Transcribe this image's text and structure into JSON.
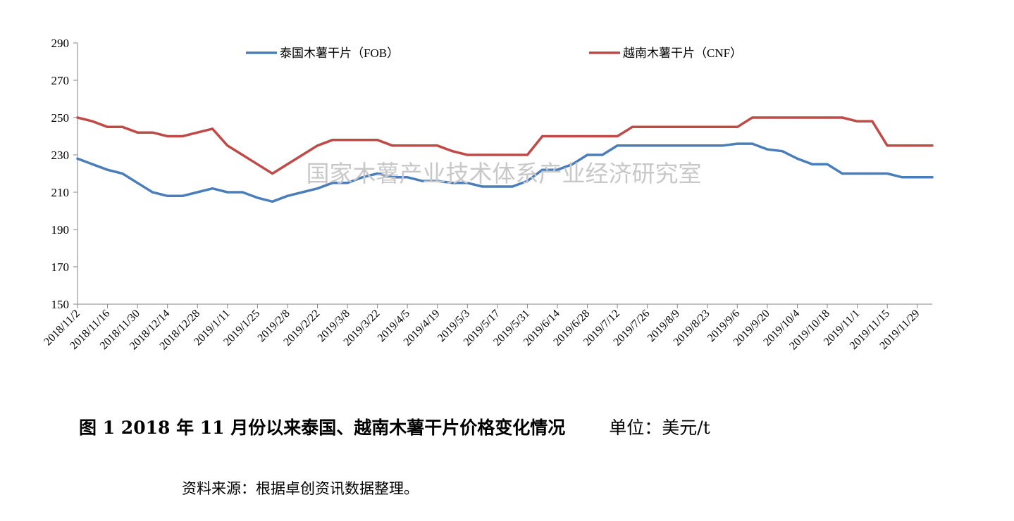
{
  "caption": {
    "title": "图 1   2018 年 11 月份以来泰国、越南木薯干片价格变化情况",
    "unit": "单位：美元/t"
  },
  "source_note": "资料来源：根据卓创资讯数据整理。",
  "watermark": "国家木薯产业技术体系产业经济研究室",
  "chart_data": {
    "type": "line",
    "ylim": [
      150,
      290
    ],
    "yticks": [
      150,
      170,
      190,
      210,
      230,
      250,
      270,
      290
    ],
    "grid": false,
    "legend_position": "top",
    "xtick_labels": [
      "2018/11/2",
      "2018/11/16",
      "2018/11/30",
      "2018/12/14",
      "2018/12/28",
      "2019/1/11",
      "2019/1/25",
      "2019/2/8",
      "2019/2/22",
      "2019/3/8",
      "2019/3/22",
      "2019/4/5",
      "2019/4/19",
      "2019/5/3",
      "2019/5/17",
      "2019/5/31",
      "2019/6/14",
      "2019/6/28",
      "2019/7/12",
      "2019/7/26",
      "2019/8/9",
      "2019/8/23",
      "2019/9/6",
      "2019/9/20",
      "2019/10/4",
      "2019/10/18",
      "2019/11/1",
      "2019/11/15",
      "2019/11/29"
    ],
    "x_points_per_tick": 2,
    "series": [
      {
        "name": "泰国木薯干片（FOB）",
        "color": "#4A7EBB",
        "values": [
          228,
          225,
          222,
          220,
          215,
          210,
          208,
          208,
          210,
          212,
          210,
          210,
          207,
          205,
          208,
          210,
          212,
          215,
          215,
          218,
          220,
          218,
          218,
          216,
          216,
          215,
          215,
          213,
          213,
          213,
          216,
          222,
          222,
          225,
          230,
          230,
          235,
          235,
          235,
          235,
          235,
          235,
          235,
          235,
          236,
          236,
          233,
          232,
          228,
          225,
          225,
          220,
          220,
          220,
          220,
          218,
          218,
          218
        ]
      },
      {
        "name": "越南木薯干片（CNF）",
        "color": "#BE4B48",
        "values": [
          250,
          248,
          245,
          245,
          242,
          242,
          240,
          240,
          242,
          244,
          235,
          230,
          225,
          220,
          225,
          230,
          235,
          238,
          238,
          238,
          238,
          235,
          235,
          235,
          235,
          232,
          230,
          230,
          230,
          230,
          230,
          240,
          240,
          240,
          240,
          240,
          240,
          245,
          245,
          245,
          245,
          245,
          245,
          245,
          245,
          250,
          250,
          250,
          250,
          250,
          250,
          250,
          248,
          248,
          235,
          235,
          235,
          235
        ]
      }
    ]
  },
  "colors": {
    "axis": "#868686",
    "watermark": "#c8c8c8"
  }
}
